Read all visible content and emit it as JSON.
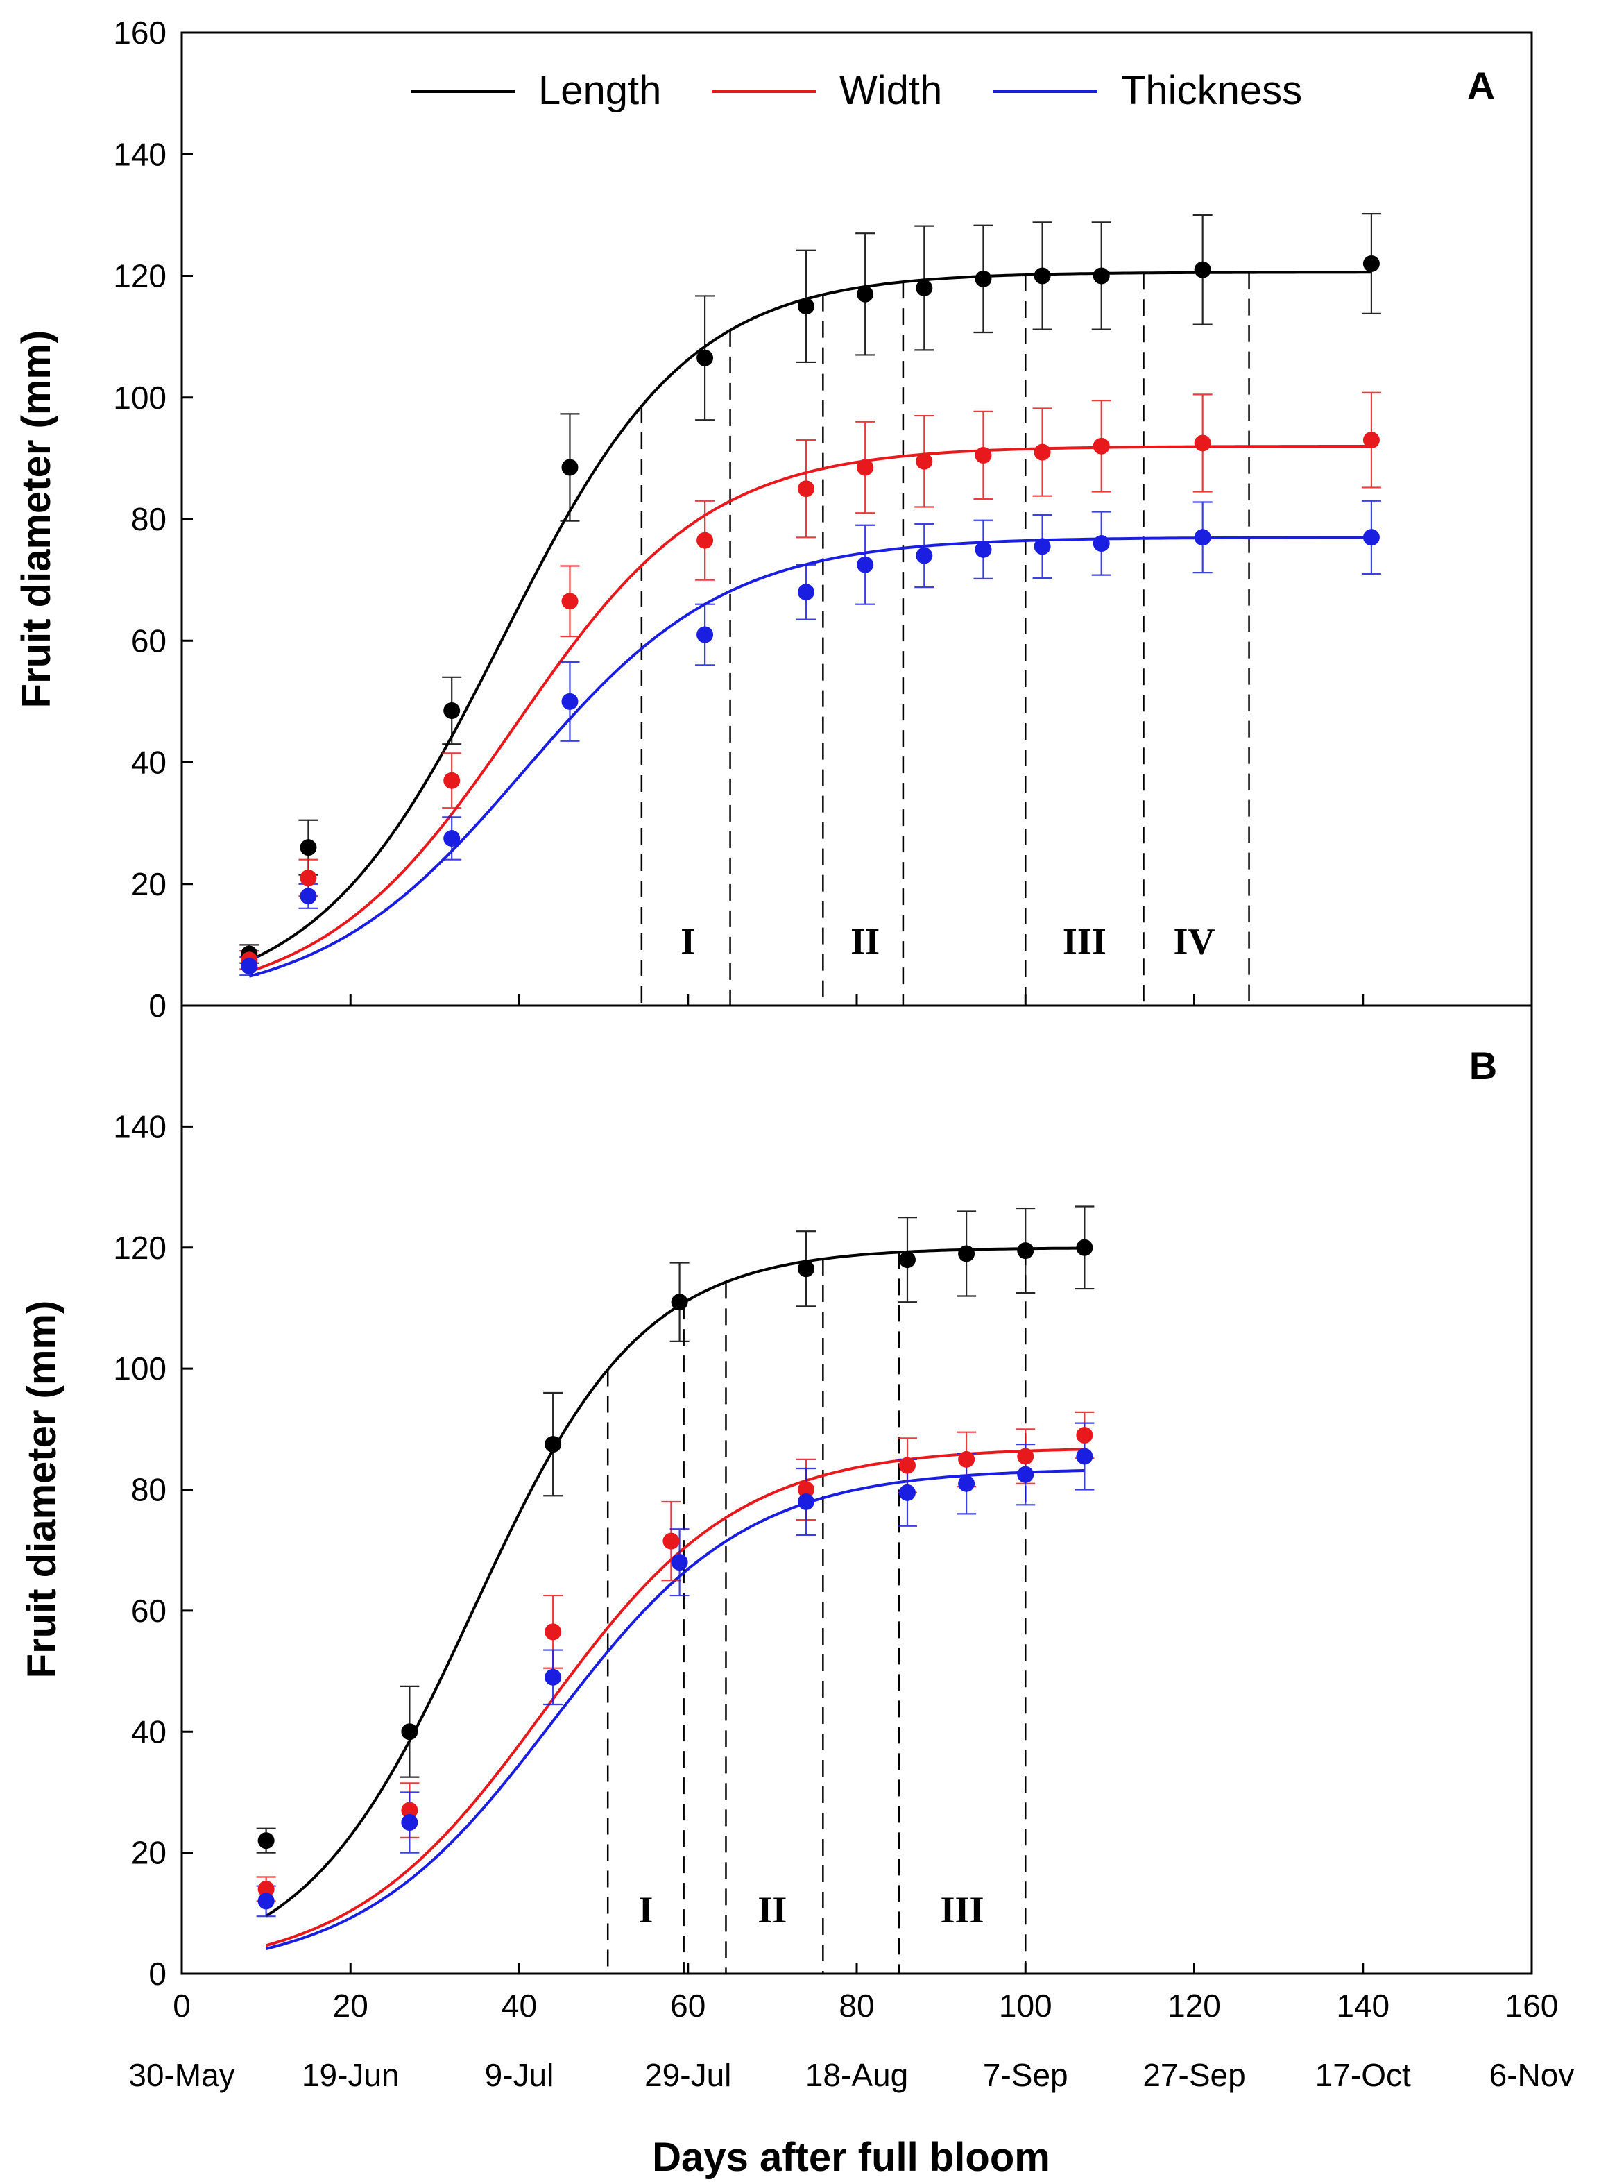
{
  "chart_data": [
    {
      "type": "scatter",
      "panel": "A",
      "ylabel": "Fruit diameter (mm)",
      "xlim": [
        0,
        160
      ],
      "ylim": [
        0,
        160
      ],
      "xticks": [
        0,
        20,
        40,
        60,
        80,
        100,
        120,
        140,
        160
      ],
      "yticks": [
        0,
        20,
        40,
        60,
        80,
        100,
        120,
        140,
        160
      ],
      "legend": [
        "Length",
        "Width",
        "Thickness"
      ],
      "legend_position": "top",
      "grid": false,
      "colors": {
        "Length": "#000000",
        "Width": "#e8191c",
        "Thickness": "#1a1ee0"
      },
      "series": [
        {
          "name": "Length",
          "x": [
            8,
            15,
            32,
            46,
            62,
            74,
            81,
            88,
            95,
            102,
            109,
            121,
            141
          ],
          "y": [
            8.5,
            26,
            48.5,
            88.5,
            106.5,
            115,
            117,
            118,
            119.5,
            120,
            120,
            121,
            122
          ],
          "err": [
            1.5,
            4.5,
            5.5,
            8.8,
            10.2,
            9.2,
            10,
            10.2,
            8.8,
            8.8,
            8.8,
            9,
            8.2
          ],
          "fit": {
            "a": 120.6,
            "b": 11.0,
            "x0": 38.0
          }
        },
        {
          "name": "Width",
          "x": [
            8,
            15,
            32,
            46,
            62,
            74,
            81,
            88,
            95,
            102,
            109,
            121,
            141
          ],
          "y": [
            7.5,
            21,
            37,
            66.5,
            76.5,
            85,
            88.5,
            89.5,
            90.5,
            91,
            92,
            92.5,
            93
          ],
          "err": [
            1.5,
            3,
            4.5,
            5.8,
            6.5,
            8,
            7.5,
            7.5,
            7.2,
            7.2,
            7.5,
            8,
            7.8
          ],
          "fit": {
            "a": 92.0,
            "b": 11.5,
            "x0": 39.5
          }
        },
        {
          "name": "Thickness",
          "x": [
            8,
            15,
            32,
            46,
            62,
            74,
            81,
            88,
            95,
            102,
            109,
            121,
            141
          ],
          "y": [
            6.5,
            18,
            27.5,
            50,
            61,
            68,
            72.5,
            74,
            75,
            75.5,
            76,
            77,
            77
          ],
          "err": [
            1.5,
            2,
            3.5,
            6.5,
            5,
            4.5,
            6.5,
            5.2,
            4.8,
            5.2,
            5.2,
            5.8,
            6
          ],
          "fit": {
            "a": 77.0,
            "b": 12.0,
            "x0": 40.5
          }
        }
      ],
      "stage_boundaries": [
        54.5,
        65,
        76,
        85.5,
        100,
        114,
        126.5
      ],
      "stages": [
        {
          "label": "I",
          "x": 60
        },
        {
          "label": "II",
          "x": 81
        },
        {
          "label": "III",
          "x": 107
        },
        {
          "label": "IV",
          "x": 120
        }
      ]
    },
    {
      "type": "scatter",
      "panel": "B",
      "xlabel": "Days after full bloom",
      "ylabel": "Fruit diameter (mm)",
      "xlim": [
        0,
        160
      ],
      "ylim": [
        0,
        160
      ],
      "xticks": [
        0,
        20,
        40,
        60,
        80,
        100,
        120,
        140,
        160
      ],
      "yticks": [
        0,
        20,
        40,
        60,
        80,
        100,
        120,
        140
      ],
      "date_labels": [
        "30-May",
        "19-Jun",
        "9-Jul",
        "29-Jul",
        "18-Aug",
        "7-Sep",
        "27-Sep",
        "17-Oct",
        "6-Nov"
      ],
      "grid": false,
      "colors": {
        "Length": "#000000",
        "Width": "#e8191c",
        "Thickness": "#1a1ee0"
      },
      "series": [
        {
          "name": "Length",
          "x": [
            10,
            27,
            44,
            59,
            74,
            86,
            93,
            100,
            107
          ],
          "y": [
            22,
            40,
            87.5,
            111,
            116.5,
            118,
            119,
            119.5,
            120
          ],
          "err": [
            2,
            7.5,
            8.5,
            6.5,
            6.2,
            7,
            7,
            7,
            6.8
          ],
          "fit": {
            "a": 120.0,
            "b": 10.0,
            "x0": 34.5
          }
        },
        {
          "name": "Width",
          "x": [
            10,
            27,
            44,
            58,
            74,
            86,
            93,
            100,
            107
          ],
          "y": [
            14,
            27,
            56.5,
            71.5,
            80,
            84,
            85,
            85.5,
            89
          ],
          "err": [
            2,
            4.5,
            6,
            6.5,
            5,
            4.5,
            4.5,
            4.5,
            3.8
          ],
          "fit": {
            "a": 87.0,
            "b": 11.5,
            "x0": 43.0
          }
        },
        {
          "name": "Thickness",
          "x": [
            10,
            27,
            44,
            59,
            74,
            86,
            93,
            100,
            107
          ],
          "y": [
            12,
            25,
            49,
            68,
            78,
            79.5,
            81,
            82.5,
            85.5
          ],
          "err": [
            2.5,
            5,
            4.5,
            5.5,
            5.5,
            5.5,
            5,
            5,
            5.5
          ],
          "fit": {
            "a": 83.5,
            "b": 11.5,
            "x0": 44.0
          }
        }
      ],
      "stage_boundaries": [
        50.5,
        59.5,
        64.5,
        76,
        85,
        100
      ],
      "stages": [
        {
          "label": "I",
          "x": 55
        },
        {
          "label": "II",
          "x": 70
        },
        {
          "label": "III",
          "x": 92.5
        }
      ]
    }
  ],
  "panels": {
    "A": {
      "letter": "A"
    },
    "B": {
      "letter": "B"
    }
  },
  "legend": {
    "length": "Length",
    "width": "Width",
    "thickness": "Thickness"
  },
  "axes": {
    "ylabel_top": "Fruit diameter (mm)",
    "ylabel_bottom": "Fruit diameter (mm)",
    "xlabel": "Days after full bloom"
  }
}
